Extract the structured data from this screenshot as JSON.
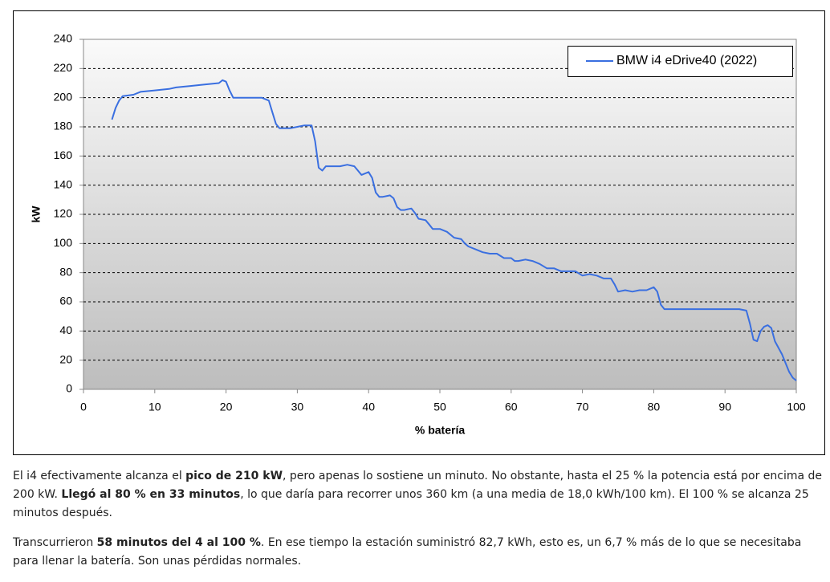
{
  "chart_data": {
    "type": "line",
    "xlabel": "% batería",
    "ylabel": "kW",
    "x": [
      4,
      4.5,
      5,
      5.5,
      7,
      8,
      10,
      12,
      13,
      15,
      17,
      19,
      19.5,
      20,
      20.5,
      21,
      22,
      25,
      26,
      26.5,
      27,
      27.5,
      29,
      30,
      31,
      32,
      32.5,
      33,
      33.5,
      34,
      36,
      37,
      38,
      38.5,
      39,
      40,
      40.5,
      41,
      41.5,
      42,
      43,
      43.5,
      44,
      44.5,
      45,
      46,
      46.5,
      47,
      48,
      48.5,
      49,
      50,
      51,
      52,
      53,
      53.5,
      54,
      55,
      56,
      57,
      58,
      59,
      60,
      60.5,
      61,
      62,
      63,
      64,
      65,
      66,
      67,
      68,
      69,
      70,
      71,
      72,
      73,
      74,
      74.5,
      75,
      76,
      77,
      78,
      79,
      80,
      80.5,
      81,
      81.5,
      82,
      85,
      88,
      90,
      92,
      93,
      93.5,
      94,
      94.5,
      95,
      95.5,
      96,
      96.5,
      97,
      98,
      99,
      99.5,
      100
    ],
    "series": [
      {
        "name": "BMW i4 eDrive40 (2022)",
        "color": "#3a6fe0",
        "values": [
          185,
          193,
          198,
          201,
          202,
          204,
          205,
          206,
          207,
          208,
          209,
          210,
          212,
          211,
          205,
          200,
          200,
          200,
          198,
          190,
          182,
          179,
          179,
          180,
          181,
          181,
          170,
          152,
          150,
          153,
          153,
          154,
          153,
          150,
          147,
          149,
          145,
          135,
          132,
          132,
          133,
          131,
          125,
          123,
          123,
          124,
          121,
          117,
          116,
          113,
          110,
          110,
          108,
          104,
          103,
          100,
          98,
          96,
          94,
          93,
          93,
          90,
          90,
          88,
          88,
          89,
          88,
          86,
          83,
          83,
          81,
          81,
          81,
          78,
          79,
          78,
          76,
          76,
          72,
          67,
          68,
          67,
          68,
          68,
          70,
          67,
          58,
          55,
          55,
          55,
          55,
          55,
          55,
          54,
          45,
          34,
          33,
          40,
          43,
          44,
          42,
          33,
          24,
          12,
          8,
          6
        ]
      }
    ],
    "xlim": [
      0,
      100
    ],
    "xticks": [
      0,
      10,
      20,
      30,
      40,
      50,
      60,
      70,
      80,
      90,
      100
    ],
    "ylim": [
      0,
      240
    ],
    "yticks": [
      0,
      20,
      40,
      60,
      80,
      100,
      120,
      140,
      160,
      180,
      200,
      220,
      240
    ],
    "grid": true,
    "legend": "upper right"
  },
  "paragraphs": [
    [
      {
        "text": "El i4 efectivamente alcanza el "
      },
      {
        "text": "pico de 210 kW",
        "bold": true
      },
      {
        "text": ", pero apenas lo sostiene un minuto. No obstante, hasta el 25 % la potencia está por encima de 200 kW. "
      },
      {
        "text": "Llegó al 80 % en 33 minutos",
        "bold": true
      },
      {
        "text": ", lo que daría para recorrer unos 360 km (a una media de 18,0 kWh/100 km). El 100 % se alcanza 25 minutos después."
      }
    ],
    [
      {
        "text": "Transcurrieron "
      },
      {
        "text": "58 minutos del 4 al 100 %",
        "bold": true
      },
      {
        "text": ". En ese tiempo la estación suministró 82,7 kWh, esto es, un 6,7 % más de lo que se necesitaba para llenar la batería. Son unas pérdidas normales."
      }
    ]
  ]
}
